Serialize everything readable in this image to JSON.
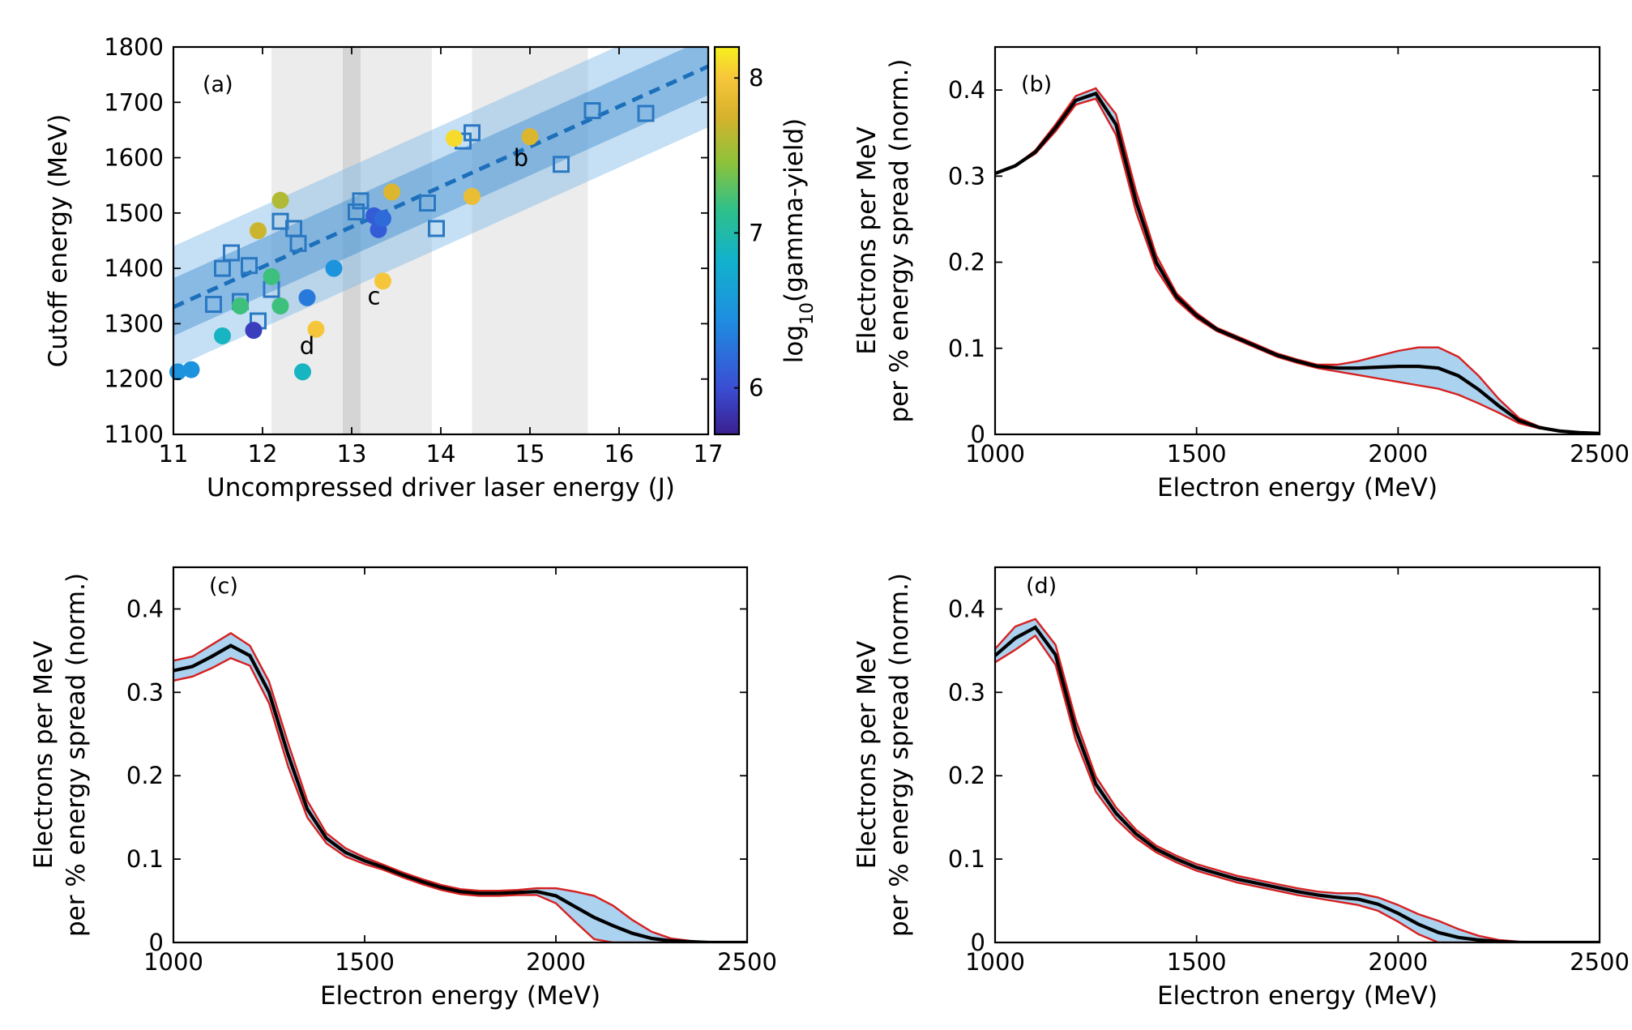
{
  "chart_data": [
    {
      "panel": "(a)",
      "type": "scatter",
      "xlabel": "Uncompressed driver laser energy (J)",
      "ylabel": "Cutoff energy (MeV)",
      "xlim": [
        11,
        17
      ],
      "ylim": [
        1100,
        1800
      ],
      "xticks": [
        11,
        12,
        13,
        14,
        15,
        16,
        17
      ],
      "yticks": [
        1100,
        1200,
        1300,
        1400,
        1500,
        1600,
        1700,
        1800
      ],
      "grid": false,
      "shaded_bands": [
        [
          12.1,
          13.9
        ],
        [
          12.9,
          13.1
        ],
        [
          14.35,
          15.65
        ]
      ],
      "fit_line": {
        "x": [
          11,
          17
        ],
        "y": [
          1330,
          1765
        ]
      },
      "fit_band_inner_halfwidth": 52,
      "fit_band_outer_halfwidth": 110,
      "squares": [
        {
          "x": 11.45,
          "y": 1335
        },
        {
          "x": 11.55,
          "y": 1400
        },
        {
          "x": 11.65,
          "y": 1428
        },
        {
          "x": 11.75,
          "y": 1340
        },
        {
          "x": 11.85,
          "y": 1405
        },
        {
          "x": 11.95,
          "y": 1305
        },
        {
          "x": 12.1,
          "y": 1362
        },
        {
          "x": 12.2,
          "y": 1485
        },
        {
          "x": 12.35,
          "y": 1472
        },
        {
          "x": 12.4,
          "y": 1445
        },
        {
          "x": 13.05,
          "y": 1502
        },
        {
          "x": 13.1,
          "y": 1522
        },
        {
          "x": 13.85,
          "y": 1518
        },
        {
          "x": 13.95,
          "y": 1472
        },
        {
          "x": 14.25,
          "y": 1630
        },
        {
          "x": 14.35,
          "y": 1645
        },
        {
          "x": 15.35,
          "y": 1588
        },
        {
          "x": 15.7,
          "y": 1685
        },
        {
          "x": 16.3,
          "y": 1680
        }
      ],
      "circles": [
        {
          "x": 11.05,
          "y": 1213,
          "c": 6.5
        },
        {
          "x": 11.2,
          "y": 1217,
          "c": 6.5
        },
        {
          "x": 11.55,
          "y": 1278,
          "c": 6.9
        },
        {
          "x": 11.75,
          "y": 1332,
          "c": 7.2
        },
        {
          "x": 11.9,
          "y": 1288,
          "c": 5.9
        },
        {
          "x": 11.95,
          "y": 1468,
          "c": 7.7
        },
        {
          "x": 12.1,
          "y": 1385,
          "c": 7.2
        },
        {
          "x": 12.2,
          "y": 1523,
          "c": 7.6
        },
        {
          "x": 12.2,
          "y": 1332,
          "c": 7.2
        },
        {
          "x": 12.45,
          "y": 1213,
          "c": 6.9
        },
        {
          "x": 12.5,
          "y": 1347,
          "c": 6.3
        },
        {
          "x": 12.6,
          "y": 1290,
          "c": 8.0
        },
        {
          "x": 12.8,
          "y": 1400,
          "c": 6.5
        },
        {
          "x": 13.25,
          "y": 1495,
          "c": 6.1
        },
        {
          "x": 13.3,
          "y": 1470,
          "c": 6.1
        },
        {
          "x": 13.35,
          "y": 1377,
          "c": 8.0
        },
        {
          "x": 13.35,
          "y": 1490,
          "c": 6.2
        },
        {
          "x": 13.45,
          "y": 1538,
          "c": 7.8
        },
        {
          "x": 14.15,
          "y": 1635,
          "c": 8.1
        },
        {
          "x": 14.35,
          "y": 1530,
          "c": 7.9
        },
        {
          "x": 15.0,
          "y": 1638,
          "c": 7.8
        }
      ],
      "annotations": [
        {
          "text": "b",
          "x": 14.9,
          "y": 1585
        },
        {
          "text": "c",
          "x": 13.25,
          "y": 1335
        },
        {
          "text": "d",
          "x": 12.5,
          "y": 1245
        }
      ],
      "colorbar": {
        "label_main": "log",
        "label_sub": "10",
        "label_rest": "(gamma-yield)",
        "range": [
          5.7,
          8.2
        ],
        "ticks": [
          6,
          7,
          8
        ]
      }
    },
    {
      "panel": "(b)",
      "type": "line",
      "xlabel": "Electron energy (MeV)",
      "ylabel_line1": "Electrons per MeV",
      "ylabel_line2": "per % energy spread (norm.)",
      "xlim": [
        1000,
        2500
      ],
      "ylim": [
        0,
        0.45
      ],
      "xticks": [
        1000,
        1500,
        2000,
        2500
      ],
      "yticks": [
        0,
        0.1,
        0.2,
        0.3,
        0.4
      ],
      "ytick_labels": [
        "0",
        "0.1",
        "0.2",
        "0.3",
        "0.4"
      ],
      "x": [
        1000,
        1050,
        1100,
        1150,
        1200,
        1250,
        1300,
        1350,
        1400,
        1450,
        1500,
        1550,
        1600,
        1650,
        1700,
        1750,
        1800,
        1850,
        1900,
        1950,
        2000,
        2050,
        2100,
        2150,
        2200,
        2250,
        2300,
        2350,
        2400,
        2450,
        2500
      ],
      "mean": [
        0.303,
        0.312,
        0.328,
        0.356,
        0.388,
        0.396,
        0.36,
        0.27,
        0.2,
        0.16,
        0.138,
        0.122,
        0.112,
        0.102,
        0.092,
        0.085,
        0.079,
        0.077,
        0.077,
        0.078,
        0.079,
        0.079,
        0.077,
        0.068,
        0.052,
        0.033,
        0.016,
        0.008,
        0.004,
        0.002,
        0.001
      ],
      "band_halfwidth": [
        0,
        0,
        0.002,
        0.004,
        0.005,
        0.006,
        0.012,
        0.012,
        0.008,
        0.004,
        0.003,
        0.002,
        0.002,
        0.002,
        0.002,
        0.002,
        0.002,
        0.004,
        0.008,
        0.013,
        0.018,
        0.022,
        0.024,
        0.022,
        0.016,
        0.008,
        0.003,
        0.001,
        0,
        0,
        0
      ]
    },
    {
      "panel": "(c)",
      "type": "line",
      "xlabel": "Electron energy (MeV)",
      "ylabel_line1": "Electrons per MeV",
      "ylabel_line2": "per % energy spread (norm.)",
      "xlim": [
        1000,
        2500
      ],
      "ylim": [
        0,
        0.45
      ],
      "xticks": [
        1000,
        1500,
        2000,
        2500
      ],
      "yticks": [
        0,
        0.1,
        0.2,
        0.3,
        0.4
      ],
      "ytick_labels": [
        "0",
        "0.1",
        "0.2",
        "0.3",
        "0.4"
      ],
      "x": [
        1000,
        1050,
        1100,
        1150,
        1200,
        1250,
        1300,
        1350,
        1400,
        1450,
        1500,
        1550,
        1600,
        1650,
        1700,
        1750,
        1800,
        1850,
        1900,
        1950,
        2000,
        2050,
        2100,
        2150,
        2200,
        2250,
        2300,
        2350,
        2400,
        2450,
        2500
      ],
      "mean": [
        0.326,
        0.331,
        0.343,
        0.356,
        0.344,
        0.3,
        0.225,
        0.16,
        0.125,
        0.108,
        0.098,
        0.09,
        0.081,
        0.073,
        0.066,
        0.061,
        0.059,
        0.059,
        0.06,
        0.061,
        0.056,
        0.043,
        0.03,
        0.02,
        0.011,
        0.005,
        0.002,
        0.001,
        0,
        0,
        0
      ],
      "band_halfwidth": [
        0.012,
        0.012,
        0.014,
        0.015,
        0.012,
        0.013,
        0.014,
        0.01,
        0.006,
        0.005,
        0.004,
        0.003,
        0.003,
        0.003,
        0.003,
        0.003,
        0.003,
        0.003,
        0.003,
        0.004,
        0.009,
        0.018,
        0.026,
        0.024,
        0.016,
        0.008,
        0.003,
        0.001,
        0,
        0,
        0
      ]
    },
    {
      "panel": "(d)",
      "type": "line",
      "xlabel": "Electron energy (MeV)",
      "ylabel_line1": "Electrons per MeV",
      "ylabel_line2": "per % energy spread (norm.)",
      "xlim": [
        1000,
        2500
      ],
      "ylim": [
        0,
        0.45
      ],
      "xticks": [
        1000,
        1500,
        2000,
        2500
      ],
      "yticks": [
        0,
        0.1,
        0.2,
        0.3,
        0.4
      ],
      "ytick_labels": [
        "0",
        "0.1",
        "0.2",
        "0.3",
        "0.4"
      ],
      "x": [
        1000,
        1050,
        1100,
        1150,
        1200,
        1250,
        1300,
        1350,
        1400,
        1450,
        1500,
        1550,
        1600,
        1650,
        1700,
        1750,
        1800,
        1850,
        1900,
        1950,
        2000,
        2050,
        2100,
        2150,
        2200,
        2250,
        2300,
        2350,
        2400,
        2450,
        2500
      ],
      "mean": [
        0.344,
        0.365,
        0.378,
        0.345,
        0.255,
        0.19,
        0.155,
        0.13,
        0.112,
        0.1,
        0.09,
        0.083,
        0.076,
        0.071,
        0.066,
        0.061,
        0.057,
        0.054,
        0.052,
        0.046,
        0.035,
        0.022,
        0.012,
        0.006,
        0.003,
        0.001,
        0,
        0,
        0,
        0,
        0
      ],
      "band_halfwidth": [
        0.008,
        0.014,
        0.01,
        0.012,
        0.012,
        0.009,
        0.007,
        0.005,
        0.004,
        0.004,
        0.004,
        0.004,
        0.004,
        0.004,
        0.004,
        0.004,
        0.004,
        0.005,
        0.007,
        0.008,
        0.01,
        0.012,
        0.014,
        0.01,
        0.005,
        0.002,
        0.001,
        0,
        0,
        0,
        0
      ]
    }
  ]
}
